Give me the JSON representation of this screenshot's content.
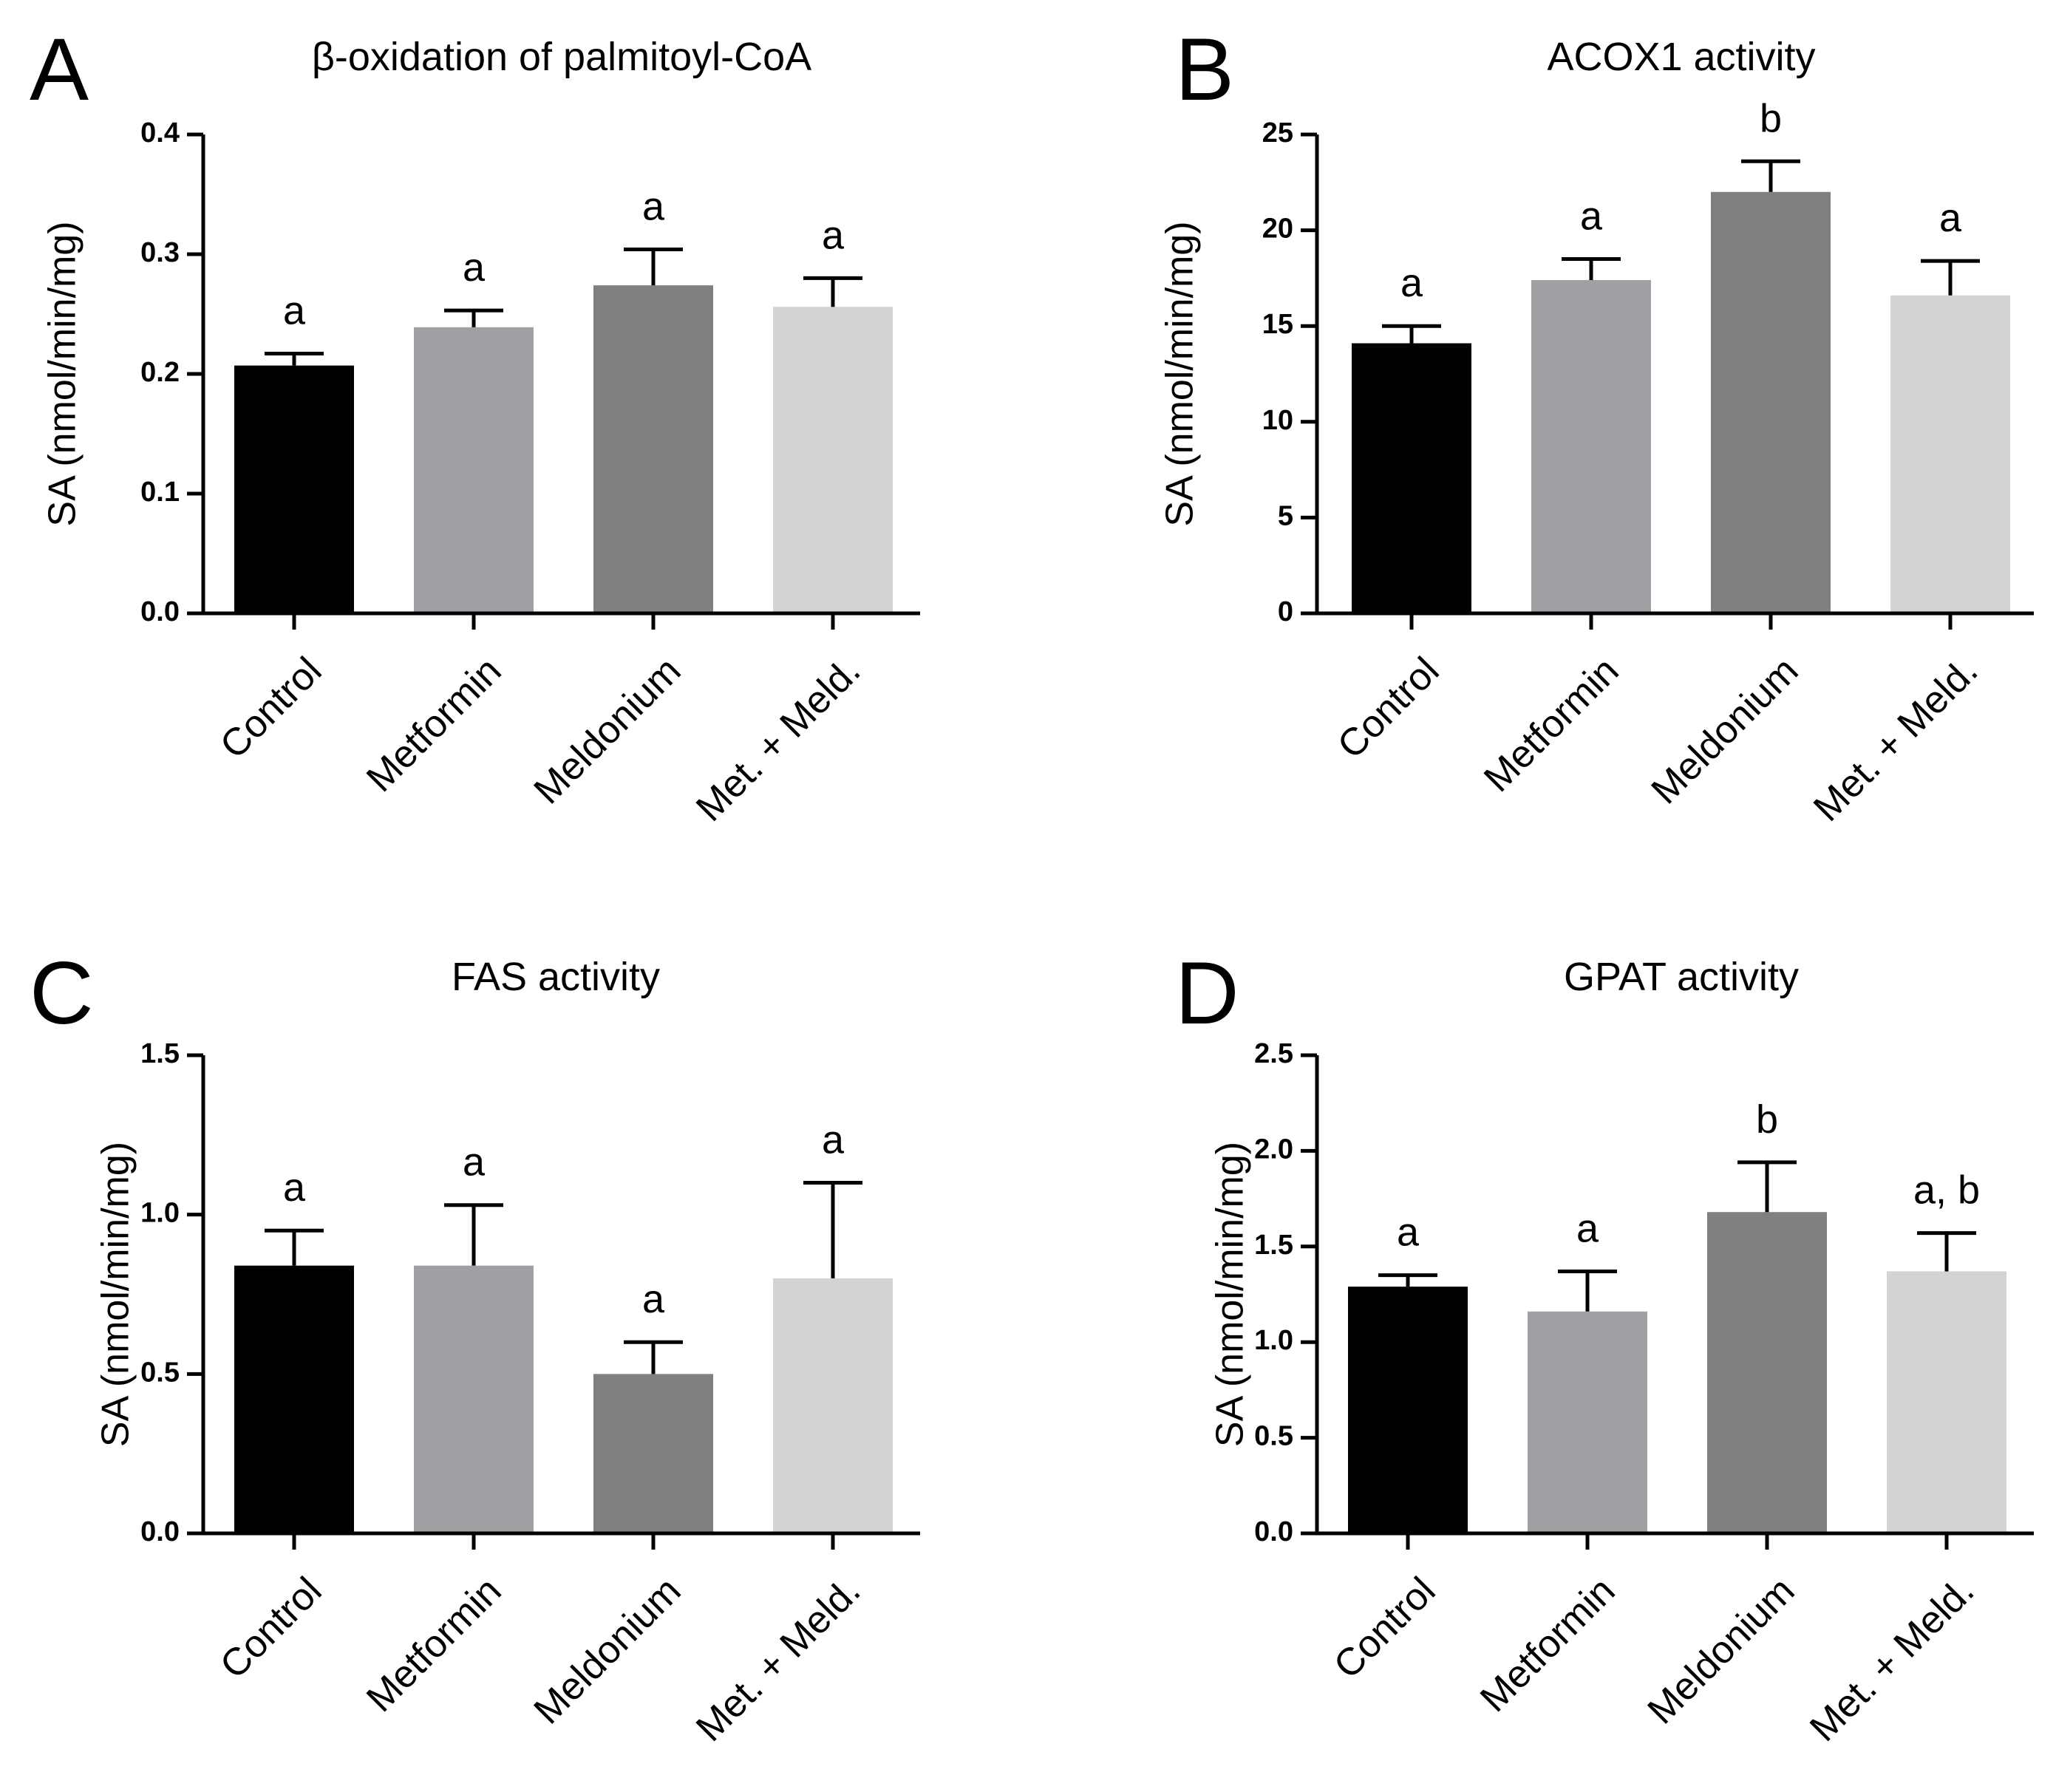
{
  "chart_data": [
    {
      "type": "bar",
      "panel": "A",
      "title": "β-oxidation of palmitoyl-CoA",
      "ylabel": "SA (nmol/min/mg)",
      "categories": [
        "Control",
        "Metformin",
        "Meldonium",
        "Met. + Meld."
      ],
      "values": [
        0.207,
        0.239,
        0.274,
        0.256
      ],
      "errors": [
        0.01,
        0.014,
        0.03,
        0.024
      ],
      "significance": [
        "a",
        "a",
        "a",
        "a"
      ],
      "ylim": [
        0,
        0.4
      ],
      "yticks": [
        0.0,
        0.1,
        0.2,
        0.3,
        0.4
      ],
      "yticklabels": [
        "0.0",
        "0.1",
        "0.2",
        "0.3",
        "0.4"
      ],
      "colors": [
        "#000000",
        "#a0a0a4",
        "#808080",
        "#d3d3d3"
      ]
    },
    {
      "type": "bar",
      "panel": "B",
      "title": "ACOX1 activity",
      "ylabel": "SA (nmol/min/mg)",
      "categories": [
        "Control",
        "Metformin",
        "Meldonium",
        "Met. + Meld."
      ],
      "values": [
        14.1,
        17.4,
        22.0,
        16.6
      ],
      "errors": [
        0.9,
        1.1,
        1.6,
        1.8
      ],
      "significance": [
        "a",
        "a",
        "b",
        "a"
      ],
      "ylim": [
        0,
        25
      ],
      "yticks": [
        0,
        5,
        10,
        15,
        20,
        25
      ],
      "yticklabels": [
        "0",
        "5",
        "10",
        "15",
        "20",
        "25"
      ],
      "colors": [
        "#000000",
        "#a0a0a4",
        "#808080",
        "#d3d3d3"
      ]
    },
    {
      "type": "bar",
      "panel": "C",
      "title": "FAS activity",
      "ylabel": "SA (nmol/min/mg)",
      "categories": [
        "Control",
        "Metformin",
        "Meldonium",
        "Met. + Meld."
      ],
      "values": [
        0.84,
        0.84,
        0.5,
        0.8
      ],
      "errors": [
        0.11,
        0.19,
        0.1,
        0.3
      ],
      "significance": [
        "a",
        "a",
        "a",
        "a"
      ],
      "ylim": [
        0,
        1.5
      ],
      "yticks": [
        0.0,
        0.5,
        1.0,
        1.5
      ],
      "yticklabels": [
        "0.0",
        "0.5",
        "1.0",
        "1.5"
      ],
      "colors": [
        "#000000",
        "#a0a0a4",
        "#808080",
        "#d3d3d3"
      ]
    },
    {
      "type": "bar",
      "panel": "D",
      "title": "GPAT activity",
      "ylabel": "SA (nmol/min/mg)",
      "categories": [
        "Control",
        "Metformin",
        "Meldonium",
        "Met. + Meld."
      ],
      "values": [
        1.29,
        1.16,
        1.68,
        1.37
      ],
      "errors": [
        0.06,
        0.21,
        0.26,
        0.2
      ],
      "significance": [
        "a",
        "a",
        "b",
        "a, b"
      ],
      "ylim": [
        0,
        2.5
      ],
      "yticks": [
        0.0,
        0.5,
        1.0,
        1.5,
        2.0,
        2.5
      ],
      "yticklabels": [
        "0.0",
        "0.5",
        "1.0",
        "1.5",
        "2.0",
        "2.5"
      ],
      "colors": [
        "#000000",
        "#a0a0a4",
        "#808080",
        "#d3d3d3"
      ]
    }
  ]
}
